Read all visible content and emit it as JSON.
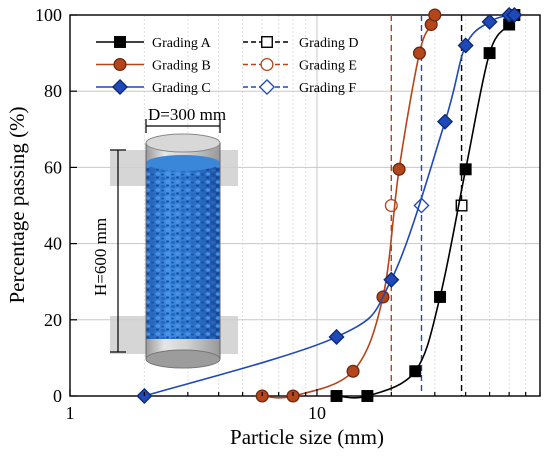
{
  "chart_data": {
    "type": "line",
    "xscale": "log",
    "xlim": [
      1,
      80
    ],
    "ylim": [
      0,
      100
    ],
    "xlabel": "Particle size (mm)",
    "ylabel": "Percentage passing (%)",
    "grid": true,
    "legend_placement": "top-right",
    "x_ticks": [
      1,
      10
    ],
    "y_ticks": [
      0,
      20,
      40,
      60,
      80,
      100
    ],
    "series": [
      {
        "name": "Grading A",
        "color": "#000000",
        "marker": "square-filled",
        "x": [
          12,
          16,
          25,
          31.5,
          40,
          50,
          60,
          63
        ],
        "y": [
          0,
          0,
          6.5,
          26,
          59.5,
          90,
          97.5,
          100
        ]
      },
      {
        "name": "Grading B",
        "color": "#b5451b",
        "marker": "circle-filled",
        "x": [
          6,
          8,
          14,
          18.5,
          21.5,
          26,
          29,
          30
        ],
        "y": [
          0,
          0,
          6.5,
          26,
          59.5,
          90,
          97.5,
          100
        ]
      },
      {
        "name": "Grading C",
        "color": "#1f48b8",
        "marker": "diamond-filled",
        "x": [
          2,
          12,
          20,
          33,
          40,
          50,
          60,
          63
        ],
        "y": [
          0,
          15.5,
          30.5,
          72,
          92,
          98.2,
          100,
          100
        ]
      }
    ],
    "reference_lines": [
      {
        "name": "Grading D",
        "color": "#000000",
        "marker": "square-open",
        "x": 38.5,
        "point_y": 50
      },
      {
        "name": "Grading E",
        "color": "#b5451b",
        "marker": "circle-open",
        "x": 20,
        "point_y": 50
      },
      {
        "name": "Grading F",
        "color": "#1f48b8",
        "marker": "diamond-open",
        "x": 26.5,
        "point_y": 50
      }
    ],
    "annotations": {
      "diameter": "D=300 mm",
      "height": "H=600 mm"
    }
  }
}
